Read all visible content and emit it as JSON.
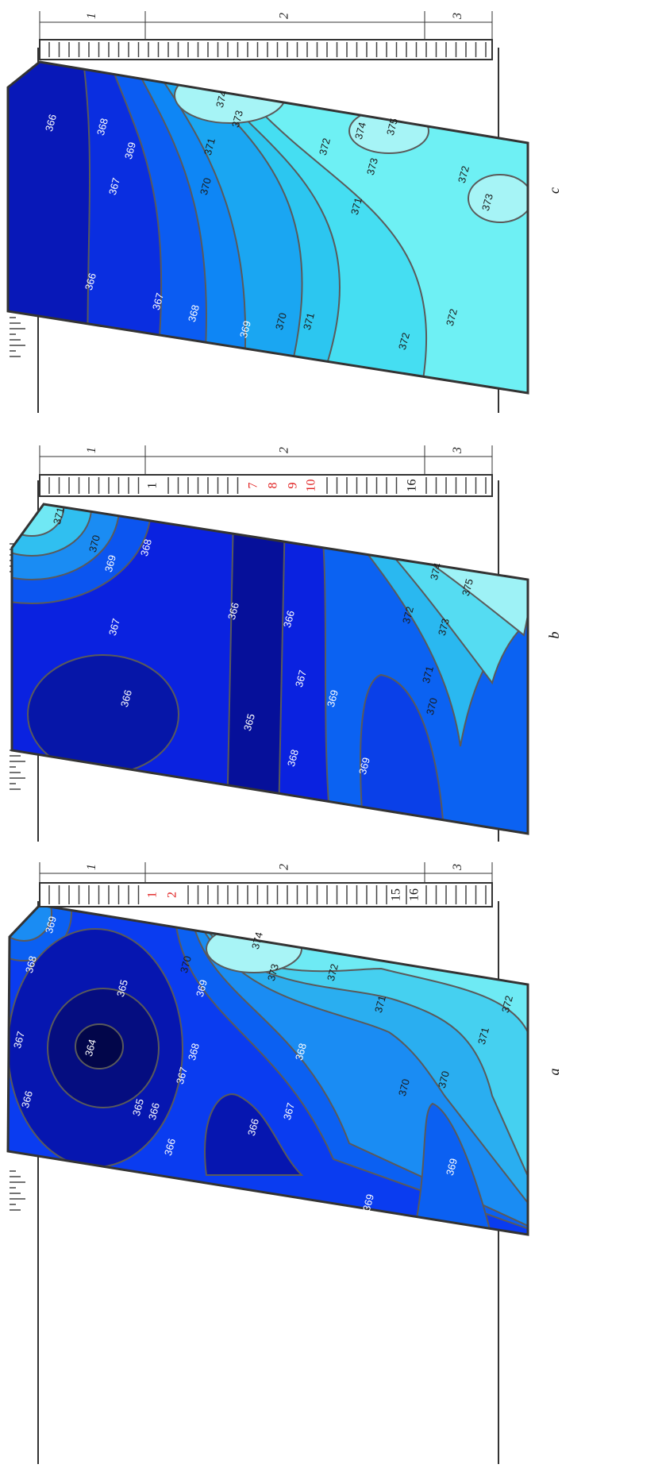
{
  "panels": [
    {
      "label": "c",
      "zones": [
        1,
        2,
        3
      ],
      "strip_numbers": [],
      "strip_number_colors": [],
      "contour_labels": [
        366,
        368,
        369,
        367,
        374,
        373,
        371,
        370,
        372,
        374,
        375,
        373,
        371,
        372,
        373,
        366,
        367,
        368,
        369,
        370,
        371,
        372,
        372
      ]
    },
    {
      "label": "b",
      "zones": [
        1,
        2,
        3
      ],
      "strip_numbers": [
        1,
        7,
        8,
        9,
        10,
        16
      ],
      "strip_number_colors": [
        "#111111",
        "#e02020",
        "#e02020",
        "#e02020",
        "#e02020",
        "#111111"
      ],
      "contour_labels": [
        371,
        370,
        369,
        368,
        367,
        366,
        366,
        366,
        365,
        367,
        368,
        369,
        369,
        374,
        375,
        372,
        373,
        371,
        370
      ]
    },
    {
      "label": "a",
      "zones": [
        1,
        2,
        3
      ],
      "strip_numbers": [
        1,
        2,
        15,
        16
      ],
      "strip_number_colors": [
        "#e02020",
        "#e02020",
        "#111111",
        "#111111"
      ],
      "contour_labels": [
        369,
        368,
        367,
        366,
        365,
        364,
        365,
        370,
        369,
        374,
        373,
        372,
        368,
        367,
        366,
        366,
        366,
        368,
        367,
        371,
        370,
        370,
        371,
        372,
        369,
        369
      ]
    }
  ]
}
